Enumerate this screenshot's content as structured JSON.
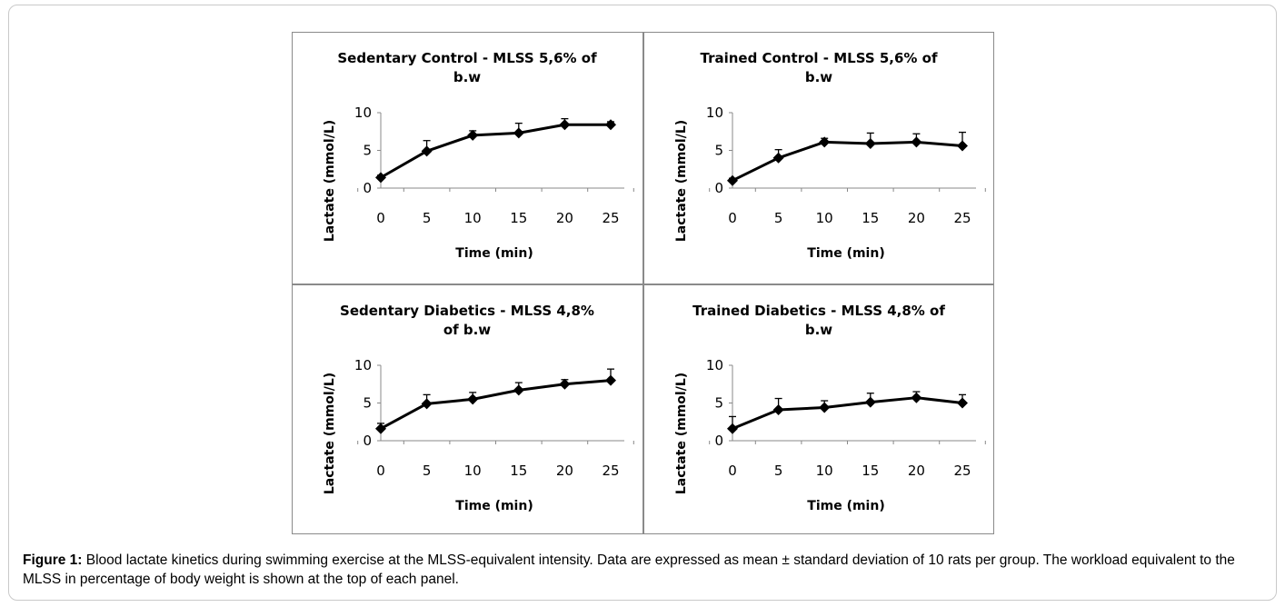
{
  "caption": {
    "label": "Figure 1:",
    "text": " Blood lactate kinetics during swimming exercise at the MLSS-equivalent intensity. Data are expressed as mean ± standard deviation of 10 rats per group. The workload equivalent to the MLSS in percentage of body weight is shown at the top of each panel."
  },
  "chart_data": [
    {
      "type": "line",
      "title_lines": [
        "Sedentary Control  - MLSS 5,6% of",
        "b.w"
      ],
      "xlabel": "Time (min)",
      "ylabel": "Lactate (mmol/L)",
      "x": [
        0,
        5,
        10,
        15,
        20,
        25
      ],
      "x_ticks": [
        "0",
        "5",
        "10",
        "15",
        "20",
        "25"
      ],
      "y_ticks": [
        "0",
        "5",
        "10"
      ],
      "ylim": [
        0,
        10
      ],
      "values": [
        1.4,
        4.9,
        7.0,
        7.3,
        8.4,
        8.4
      ],
      "error_plus": [
        0.3,
        1.4,
        0.6,
        1.3,
        0.8,
        0.4
      ],
      "marker": "diamond",
      "color": "#000000"
    },
    {
      "type": "line",
      "title_lines": [
        "Trained Control  - MLSS 5,6% of",
        "b.w"
      ],
      "xlabel": "Time (min)",
      "ylabel": "Lactate (mmol/L)",
      "x": [
        0,
        5,
        10,
        15,
        20,
        25
      ],
      "x_ticks": [
        "0",
        "5",
        "10",
        "15",
        "20",
        "25"
      ],
      "y_ticks": [
        "0",
        "5",
        "10"
      ],
      "ylim": [
        0,
        10
      ],
      "values": [
        1.0,
        4.0,
        6.1,
        5.9,
        6.1,
        5.6
      ],
      "error_plus": [
        0.3,
        1.1,
        0.5,
        1.4,
        1.1,
        1.8
      ],
      "marker": "diamond",
      "color": "#000000"
    },
    {
      "type": "line",
      "title_lines": [
        "Sedentary Diabetics  -  MLSS 4,8%",
        "of b.w"
      ],
      "xlabel": "Time (min)",
      "ylabel": "Lactate (mmol/L)",
      "x": [
        0,
        5,
        10,
        15,
        20,
        25
      ],
      "x_ticks": [
        "0",
        "5",
        "10",
        "15",
        "20",
        "25"
      ],
      "y_ticks": [
        "0",
        "5",
        "10"
      ],
      "ylim": [
        0,
        10
      ],
      "values": [
        1.6,
        4.9,
        5.5,
        6.7,
        7.5,
        8.0
      ],
      "error_plus": [
        0.7,
        1.2,
        0.9,
        1.0,
        0.6,
        1.5
      ],
      "marker": "diamond",
      "color": "#000000"
    },
    {
      "type": "line",
      "title_lines": [
        "Trained Diabetics  - MLSS 4,8% of",
        "b.w"
      ],
      "xlabel": "Time (min)",
      "ylabel": "Lactate (mmol/L)",
      "x": [
        0,
        5,
        10,
        15,
        20,
        25
      ],
      "x_ticks": [
        "0",
        "5",
        "10",
        "15",
        "20",
        "25"
      ],
      "y_ticks": [
        "0",
        "5",
        "10"
      ],
      "ylim": [
        0,
        10
      ],
      "values": [
        1.6,
        4.1,
        4.4,
        5.1,
        5.7,
        5.0
      ],
      "error_plus": [
        1.6,
        1.5,
        0.9,
        1.2,
        0.8,
        1.1
      ],
      "marker": "diamond",
      "color": "#000000"
    }
  ]
}
